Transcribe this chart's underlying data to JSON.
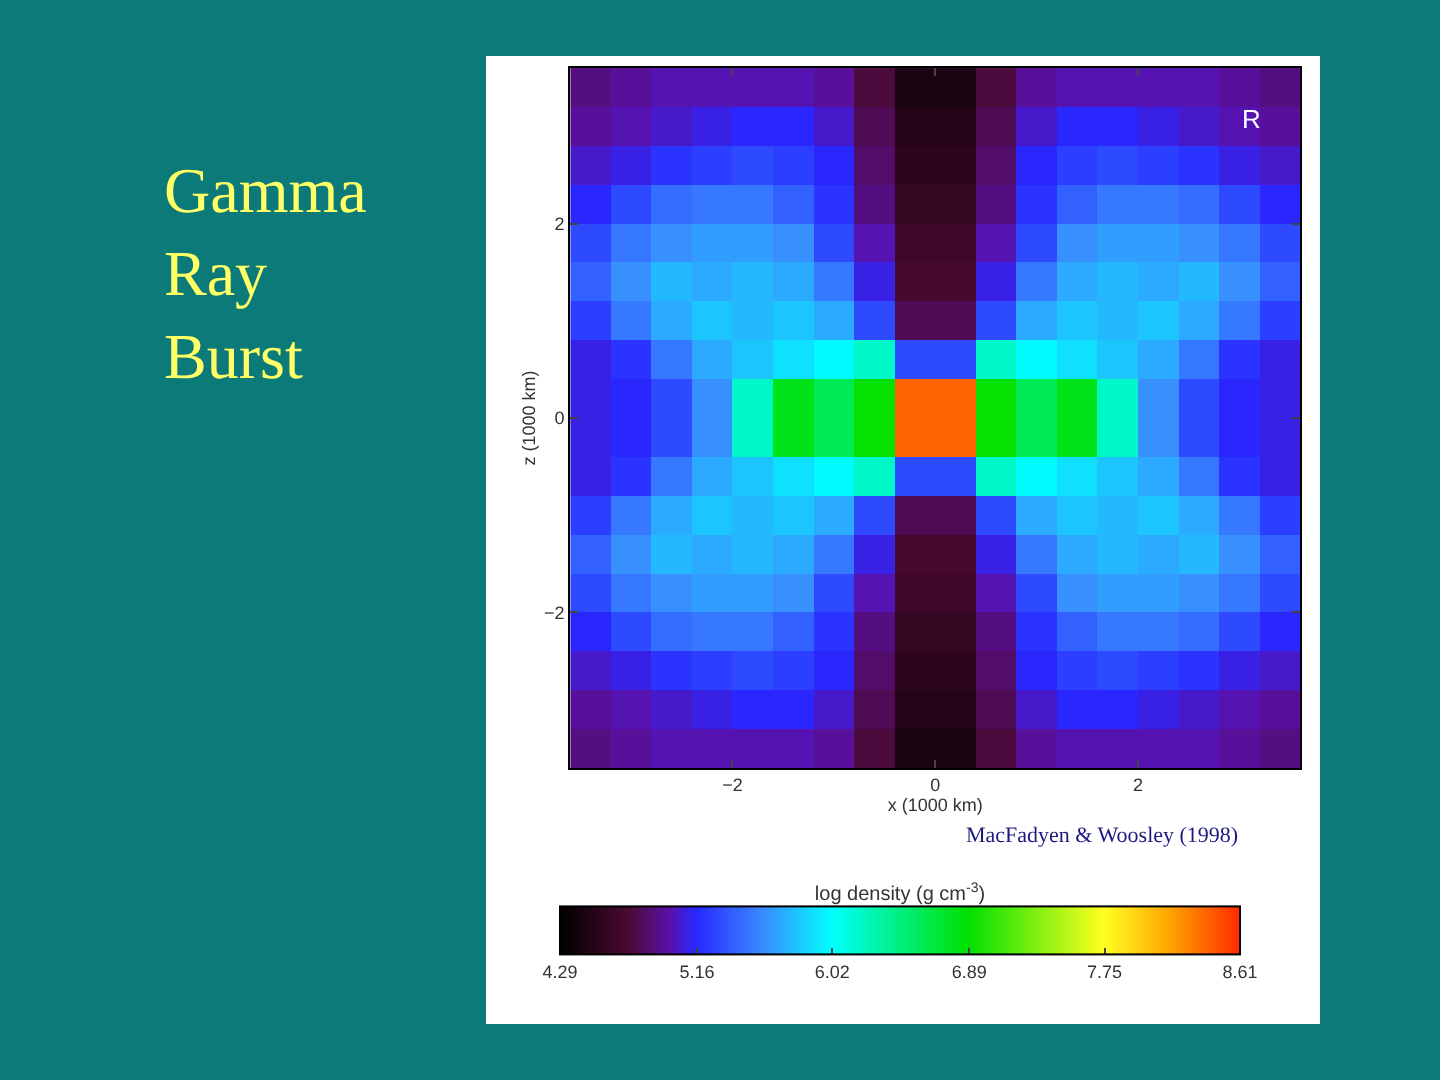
{
  "chart_data": {
    "type": "heatmap",
    "title": "Gamma Ray Burst",
    "xlabel": "x (1000 km)",
    "ylabel": "z (1000 km)",
    "clabel": "log density (g cm$^{-3}$)",
    "annotations": [
      "R",
      "MacFadyen & Woosley (1998)"
    ],
    "xlim": [
      -3.6,
      3.6
    ],
    "ylim": [
      -3.6,
      3.6
    ],
    "xticks": [
      -2,
      0,
      2
    ],
    "yticks": [
      -2,
      0,
      2
    ],
    "clim": [
      4.29,
      8.61
    ],
    "cticks": [
      4.29,
      5.16,
      6.02,
      6.89,
      7.75,
      8.61
    ],
    "cells": [
      [
        4.9,
        4.95,
        5.0,
        5.0,
        5.0,
        5.0,
        4.95,
        4.75,
        4.45,
        4.45,
        4.75,
        4.95,
        5.0,
        5.0,
        5.0,
        5.0,
        4.95,
        4.9
      ],
      [
        4.95,
        5.0,
        5.05,
        5.1,
        5.15,
        5.15,
        5.05,
        4.8,
        4.5,
        4.5,
        4.8,
        5.05,
        5.15,
        5.15,
        5.1,
        5.05,
        5.0,
        4.95
      ],
      [
        5.05,
        5.1,
        5.2,
        5.25,
        5.3,
        5.25,
        5.15,
        4.85,
        4.55,
        4.55,
        4.85,
        5.15,
        5.25,
        5.3,
        5.25,
        5.2,
        5.1,
        5.05
      ],
      [
        5.15,
        5.3,
        5.45,
        5.5,
        5.5,
        5.4,
        5.2,
        4.9,
        4.6,
        4.6,
        4.9,
        5.2,
        5.4,
        5.5,
        5.5,
        5.45,
        5.3,
        5.15
      ],
      [
        5.3,
        5.5,
        5.6,
        5.65,
        5.65,
        5.6,
        5.3,
        5.0,
        4.65,
        4.65,
        5.0,
        5.3,
        5.6,
        5.65,
        5.65,
        5.6,
        5.5,
        5.3
      ],
      [
        5.4,
        5.6,
        5.75,
        5.7,
        5.75,
        5.7,
        5.5,
        5.1,
        4.7,
        4.7,
        5.1,
        5.5,
        5.7,
        5.75,
        5.7,
        5.75,
        5.6,
        5.4
      ],
      [
        5.25,
        5.5,
        5.7,
        5.8,
        5.75,
        5.8,
        5.7,
        5.3,
        4.8,
        4.8,
        5.3,
        5.7,
        5.8,
        5.75,
        5.8,
        5.7,
        5.5,
        5.25
      ],
      [
        5.1,
        5.2,
        5.5,
        5.7,
        5.8,
        5.9,
        6.0,
        6.2,
        5.3,
        5.3,
        6.2,
        6.0,
        5.9,
        5.8,
        5.7,
        5.5,
        5.2,
        5.1
      ],
      [
        5.1,
        5.15,
        5.3,
        5.6,
        6.2,
        6.8,
        6.6,
        6.9,
        8.4,
        8.4,
        6.9,
        6.6,
        6.8,
        6.2,
        5.6,
        5.3,
        5.15,
        5.1
      ],
      [
        5.1,
        5.15,
        5.3,
        5.6,
        6.2,
        6.8,
        6.6,
        6.9,
        8.4,
        8.4,
        6.9,
        6.6,
        6.8,
        6.2,
        5.6,
        5.3,
        5.15,
        5.1
      ],
      [
        5.1,
        5.2,
        5.5,
        5.7,
        5.8,
        5.9,
        6.0,
        6.2,
        5.3,
        5.3,
        6.2,
        6.0,
        5.9,
        5.8,
        5.7,
        5.5,
        5.2,
        5.1
      ],
      [
        5.25,
        5.5,
        5.7,
        5.8,
        5.75,
        5.8,
        5.7,
        5.3,
        4.8,
        4.8,
        5.3,
        5.7,
        5.8,
        5.75,
        5.8,
        5.7,
        5.5,
        5.25
      ],
      [
        5.4,
        5.6,
        5.75,
        5.7,
        5.75,
        5.7,
        5.5,
        5.1,
        4.7,
        4.7,
        5.1,
        5.5,
        5.7,
        5.75,
        5.7,
        5.75,
        5.6,
        5.4
      ],
      [
        5.3,
        5.5,
        5.6,
        5.65,
        5.65,
        5.6,
        5.3,
        5.0,
        4.65,
        4.65,
        5.0,
        5.3,
        5.6,
        5.65,
        5.65,
        5.6,
        5.5,
        5.3
      ],
      [
        5.15,
        5.3,
        5.45,
        5.5,
        5.5,
        5.4,
        5.2,
        4.9,
        4.6,
        4.6,
        4.9,
        5.2,
        5.4,
        5.5,
        5.5,
        5.45,
        5.3,
        5.15
      ],
      [
        5.05,
        5.1,
        5.2,
        5.25,
        5.3,
        5.25,
        5.15,
        4.85,
        4.55,
        4.55,
        4.85,
        5.15,
        5.25,
        5.3,
        5.25,
        5.2,
        5.1,
        5.05
      ],
      [
        4.95,
        5.0,
        5.05,
        5.1,
        5.15,
        5.15,
        5.05,
        4.8,
        4.5,
        4.5,
        4.8,
        5.05,
        5.15,
        5.15,
        5.1,
        5.05,
        5.0,
        4.95
      ],
      [
        4.9,
        4.95,
        5.0,
        5.0,
        5.0,
        5.0,
        4.95,
        4.75,
        4.45,
        4.45,
        4.75,
        4.95,
        5.0,
        5.0,
        5.0,
        5.0,
        4.95,
        4.9
      ]
    ]
  }
}
